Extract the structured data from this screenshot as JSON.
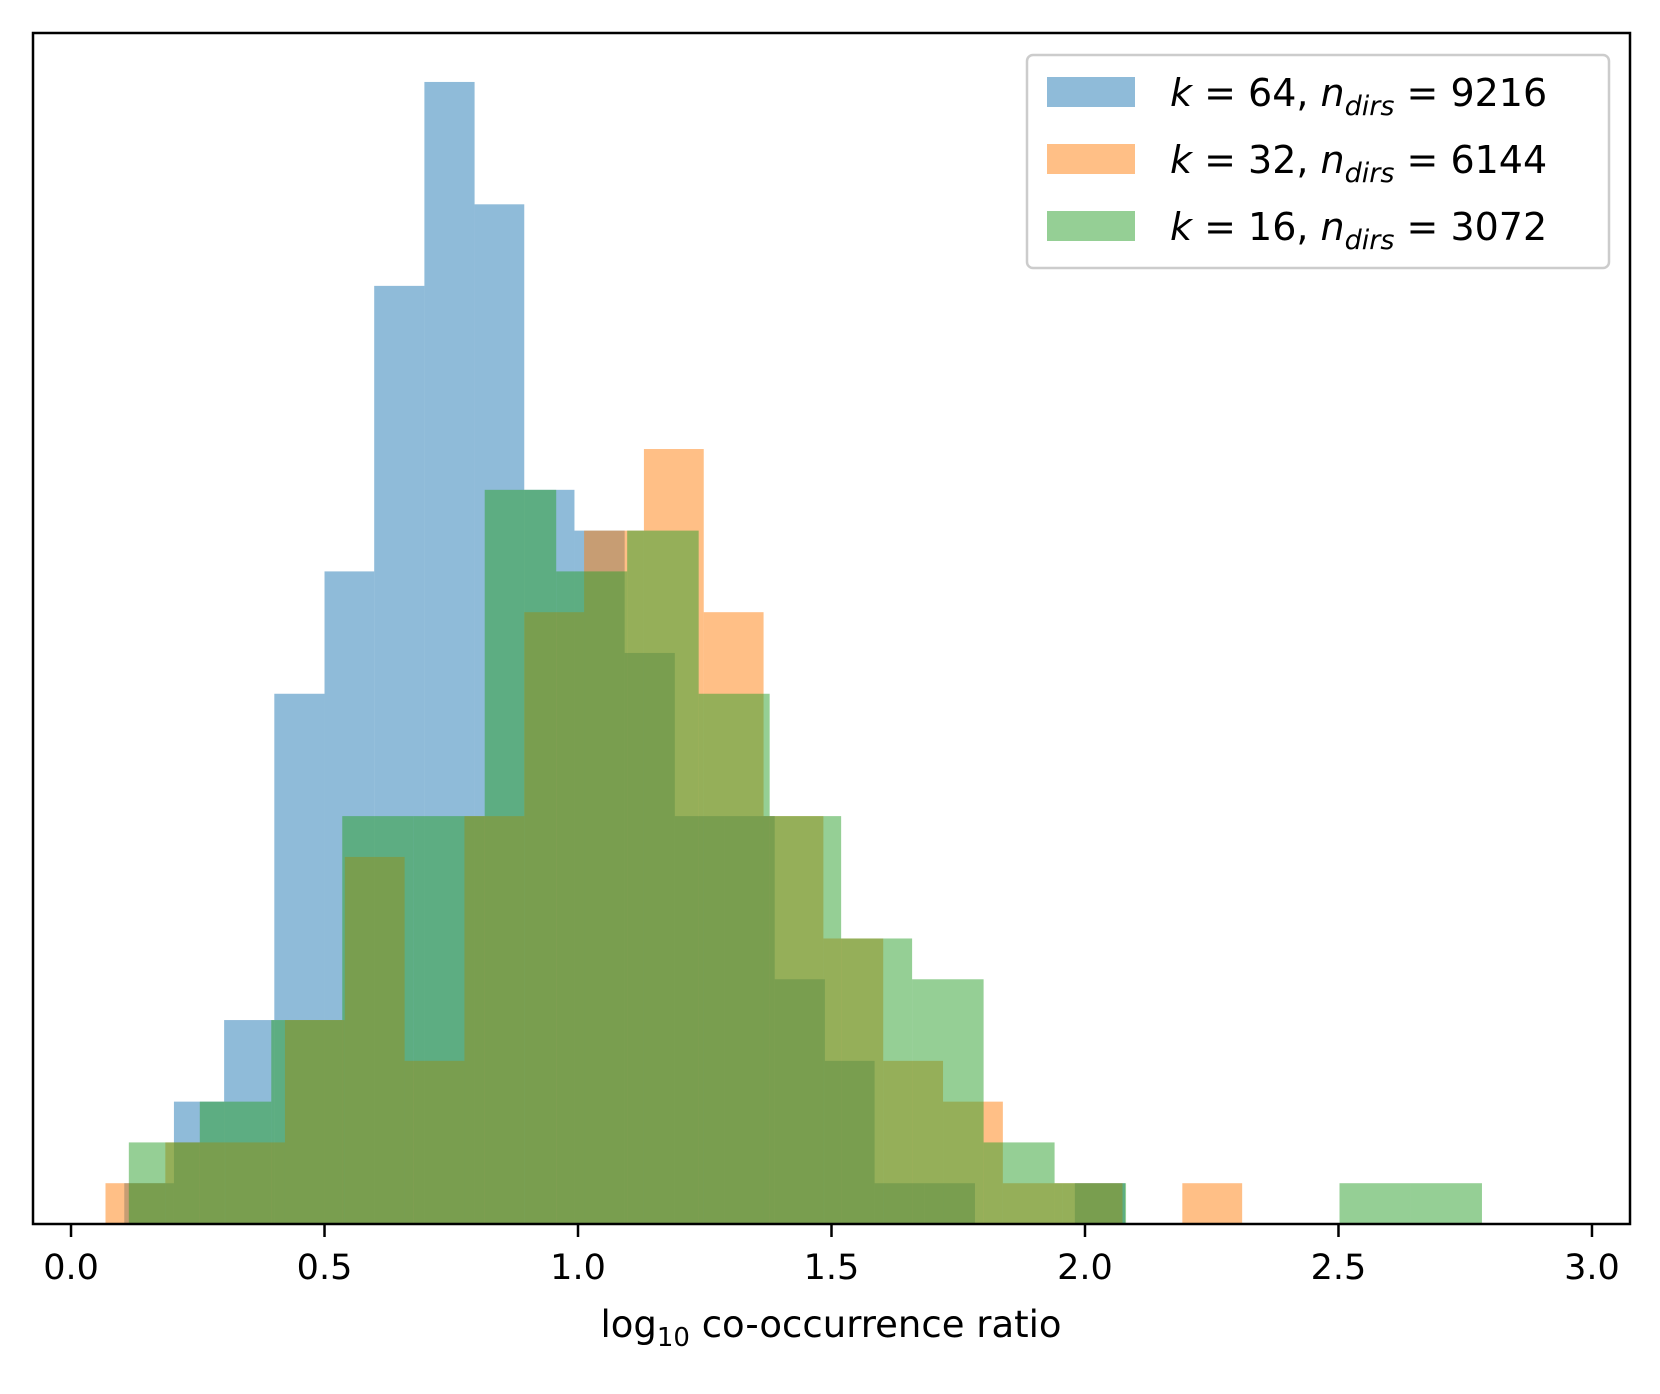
{
  "chart_data": {
    "type": "histogram",
    "title": "",
    "xlabel": {
      "prefix": "log",
      "subscript": "10",
      "suffix": " co-occurrence ratio"
    },
    "ylabel": "",
    "xlim": [
      -0.075,
      3.075
    ],
    "ylim": [
      0,
      29.2
    ],
    "grid": false,
    "yticks_visible": false,
    "xticks": [
      "0.0",
      "0.5",
      "1.0",
      "1.5",
      "2.0",
      "2.5",
      "3.0"
    ],
    "xtick_values": [
      0.0,
      0.5,
      1.0,
      1.5,
      2.0,
      2.5,
      3.0
    ],
    "legend_position": "top-right",
    "series": [
      {
        "name": "k = 64, n_dirs = 9216",
        "legend_k": "64",
        "legend_n": "9216",
        "color": "#1f77b4",
        "opacity": 0.5,
        "edges": [
          0.105,
          0.203,
          0.302,
          0.401,
          0.5,
          0.598,
          0.697,
          0.796,
          0.894,
          0.993,
          1.092,
          1.191,
          1.289,
          1.388,
          1.487,
          1.585,
          1.684,
          1.783,
          1.882,
          1.98,
          2.079
        ],
        "counts": [
          1,
          3,
          5,
          13,
          16,
          23,
          28,
          25,
          18,
          17,
          14,
          10,
          10,
          6,
          4,
          1,
          1,
          0,
          0,
          1
        ]
      },
      {
        "name": "k = 32, n_dirs = 6144",
        "legend_k": "32",
        "legend_n": "6144",
        "color": "#ff7f0e",
        "opacity": 0.5,
        "edges": [
          0.068,
          0.186,
          0.304,
          0.422,
          0.54,
          0.658,
          0.776,
          0.894,
          1.012,
          1.13,
          1.248,
          1.366,
          1.484,
          1.602,
          1.72,
          1.838,
          1.956,
          2.074,
          2.192,
          2.31,
          2.428
        ],
        "counts": [
          1,
          2,
          2,
          5,
          9,
          4,
          10,
          15,
          17,
          19,
          15,
          10,
          7,
          4,
          3,
          1,
          1,
          0,
          1,
          0
        ]
      },
      {
        "name": "k = 16, n_dirs = 3072",
        "legend_k": "16",
        "legend_n": "3072",
        "color": "#2ca02c",
        "opacity": 0.5,
        "edges": [
          0.114,
          0.254,
          0.395,
          0.535,
          0.676,
          0.816,
          0.957,
          1.097,
          1.238,
          1.378,
          1.519,
          1.659,
          1.8,
          1.94,
          2.081,
          2.221,
          2.362,
          2.502,
          2.643,
          2.783,
          2.924
        ],
        "counts": [
          2,
          3,
          5,
          10,
          10,
          18,
          16,
          17,
          13,
          10,
          7,
          6,
          2,
          1,
          0,
          0,
          0,
          1,
          1,
          0
        ]
      }
    ]
  }
}
